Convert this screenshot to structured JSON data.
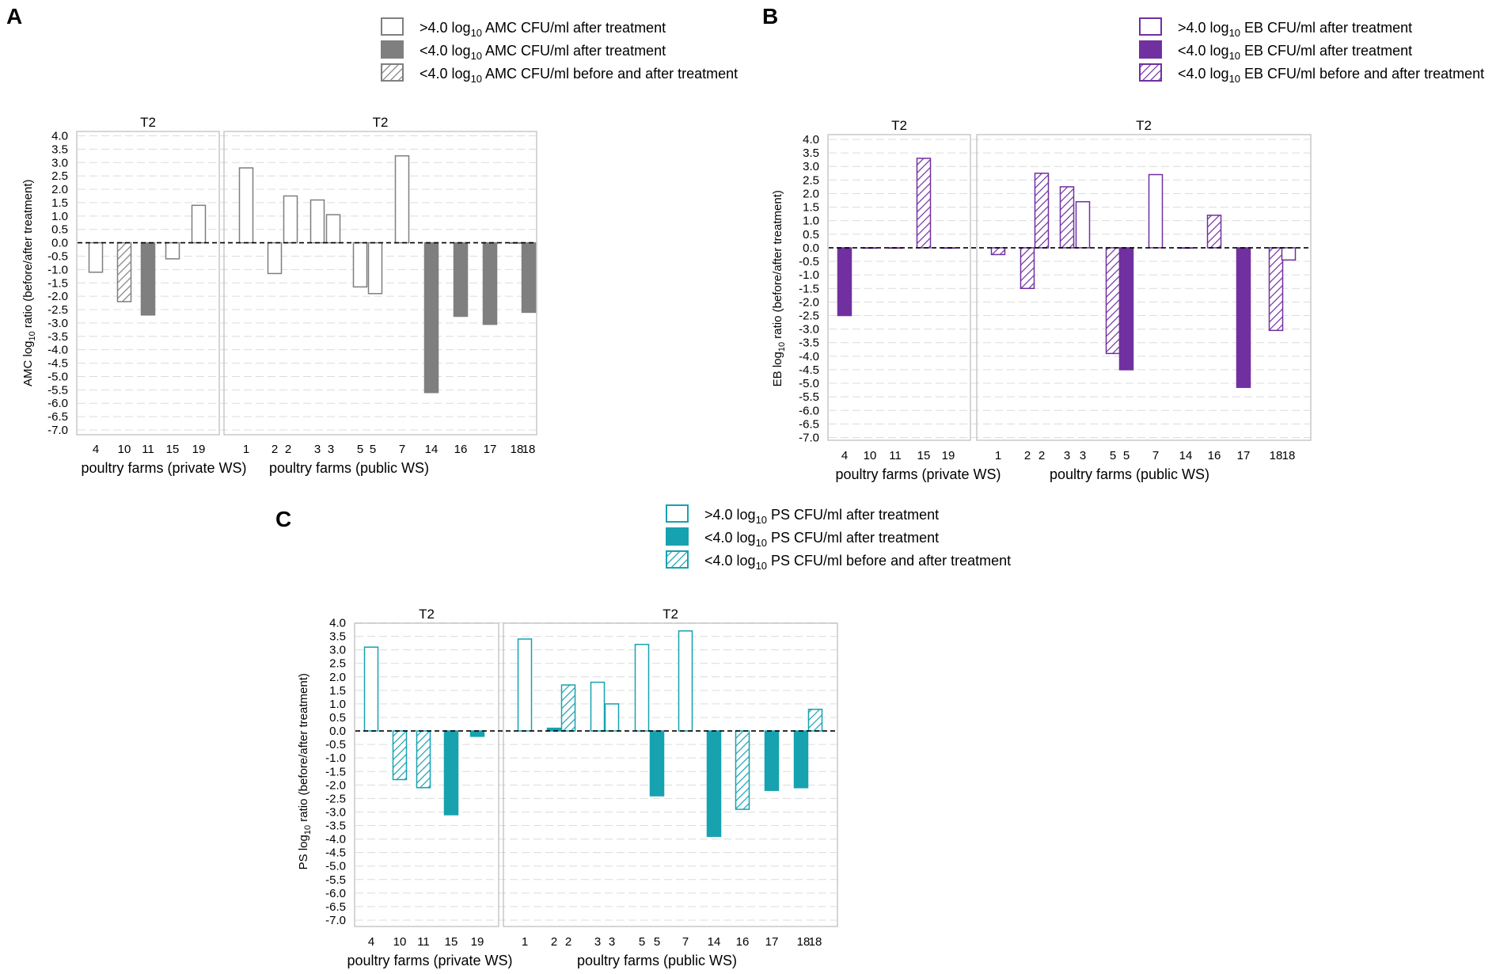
{
  "chart_data": [
    {
      "type": "bar",
      "panel_label": "A",
      "ylabel_prefix": "AMC log",
      "ylabel_sub": "10",
      "ylabel_suffix": " ratio (before/after treatment)",
      "ylim": [
        -7.0,
        4.0
      ],
      "ytick_step": 0.5,
      "ytick_labels": [
        "4.0",
        "3.5",
        "3.0",
        "2.5",
        "2.0",
        "1.5",
        "1.0",
        "0.5",
        "0.0",
        "-0.5",
        "-1.0",
        "-1.5",
        "-2.0",
        "-2.5",
        "-3.0",
        "-3.5",
        "-4.0",
        "-4.5",
        "-5.0",
        "-5.5",
        "-6.0",
        "-6.5",
        "-7.0"
      ],
      "color": "#7f7f7f",
      "legend": [
        {
          "style": "open",
          "pre": ">4.0 log",
          "sub": "10",
          "post": " AMC CFU/ml after treatment"
        },
        {
          "style": "solid",
          "pre": "<4.0 log",
          "sub": "10",
          "post": " AMC CFU/ml after treatment"
        },
        {
          "style": "hatch",
          "pre": "<4.0 log",
          "sub": "10",
          "post": " AMC CFU/ml before and after treatment"
        }
      ],
      "subpanels": [
        {
          "title": "T2",
          "xlabel": "poultry farms (private WS)",
          "categories": [
            "4",
            "10",
            "11",
            "15",
            "19"
          ],
          "bars": [
            {
              "category": "4",
              "value": -1.1,
              "style": "open"
            },
            {
              "category": "10",
              "value": -2.2,
              "style": "hatch"
            },
            {
              "category": "11",
              "value": -2.7,
              "style": "solid"
            },
            {
              "category": "15",
              "value": -0.6,
              "style": "open"
            },
            {
              "category": "19",
              "value": 1.4,
              "style": "open"
            }
          ]
        },
        {
          "title": "T2",
          "xlabel": "poultry farms (public WS)",
          "categories": [
            "1",
            "2",
            "2",
            "3",
            "3",
            "5",
            "5",
            "7",
            "14",
            "16",
            "17",
            "18",
            "18"
          ],
          "bars": [
            {
              "category": "1",
              "value": 2.8,
              "style": "open"
            },
            {
              "category": "2",
              "value": -1.15,
              "style": "open"
            },
            {
              "category": "2",
              "value": 1.75,
              "style": "open"
            },
            {
              "category": "3",
              "value": 1.6,
              "style": "open"
            },
            {
              "category": "3",
              "value": 1.05,
              "style": "open"
            },
            {
              "category": "5",
              "value": -1.65,
              "style": "open"
            },
            {
              "category": "5",
              "value": -1.9,
              "style": "open"
            },
            {
              "category": "7",
              "value": 3.25,
              "style": "open"
            },
            {
              "category": "14",
              "value": -5.6,
              "style": "solid"
            },
            {
              "category": "16",
              "value": -2.75,
              "style": "solid"
            },
            {
              "category": "17",
              "value": -3.05,
              "style": "solid"
            },
            {
              "category": "18",
              "value": 0,
              "style": "open"
            },
            {
              "category": "18",
              "value": -2.6,
              "style": "solid"
            }
          ]
        }
      ]
    },
    {
      "type": "bar",
      "panel_label": "B",
      "ylabel_prefix": "EB log",
      "ylabel_sub": "10",
      "ylabel_suffix": " ratio (before/after treatment)",
      "ylim": [
        -7.0,
        4.0
      ],
      "ytick_step": 0.5,
      "ytick_labels": [
        "4.0",
        "3.5",
        "3.0",
        "2.5",
        "2.0",
        "1.5",
        "1.0",
        "0.5",
        "0.0",
        "-0.5",
        "-1.0",
        "-1.5",
        "-2.0",
        "-2.5",
        "-3.0",
        "-3.5",
        "-4.0",
        "-4.5",
        "-5.0",
        "-5.5",
        "-6.0",
        "-6.5",
        "-7.0"
      ],
      "color": "#7030a0",
      "legend": [
        {
          "style": "open",
          "pre": ">4.0 log",
          "sub": "10",
          "post": " EB CFU/ml after treatment"
        },
        {
          "style": "solid",
          "pre": "<4.0 log",
          "sub": "10",
          "post": " EB CFU/ml after treatment"
        },
        {
          "style": "hatch",
          "pre": "<4.0 log",
          "sub": "10",
          "post": " EB CFU/ml before and after treatment"
        }
      ],
      "subpanels": [
        {
          "title": "T2",
          "xlabel": "poultry farms (private WS)",
          "categories": [
            "4",
            "10",
            "11",
            "15",
            "19"
          ],
          "bars": [
            {
              "category": "4",
              "value": -2.5,
              "style": "solid"
            },
            {
              "category": "10",
              "value": 0,
              "style": "solid"
            },
            {
              "category": "11",
              "value": 0,
              "style": "solid"
            },
            {
              "category": "15",
              "value": 3.3,
              "style": "hatch"
            },
            {
              "category": "19",
              "value": 0,
              "style": "solid"
            }
          ]
        },
        {
          "title": "T2",
          "xlabel": "poultry farms (public WS)",
          "categories": [
            "1",
            "2",
            "2",
            "3",
            "3",
            "5",
            "5",
            "7",
            "14",
            "16",
            "17",
            "18",
            "18"
          ],
          "bars": [
            {
              "category": "1",
              "value": -0.25,
              "style": "hatch"
            },
            {
              "category": "2",
              "value": -1.5,
              "style": "hatch"
            },
            {
              "category": "2",
              "value": 2.75,
              "style": "hatch"
            },
            {
              "category": "3",
              "value": 2.25,
              "style": "hatch"
            },
            {
              "category": "3",
              "value": 1.7,
              "style": "open"
            },
            {
              "category": "5",
              "value": -3.9,
              "style": "hatch"
            },
            {
              "category": "5",
              "value": -4.5,
              "style": "solid"
            },
            {
              "category": "7",
              "value": 2.7,
              "style": "open"
            },
            {
              "category": "14",
              "value": 0,
              "style": "solid"
            },
            {
              "category": "16",
              "value": 1.2,
              "style": "hatch"
            },
            {
              "category": "17",
              "value": -5.15,
              "style": "solid"
            },
            {
              "category": "18",
              "value": -3.05,
              "style": "hatch"
            },
            {
              "category": "18",
              "value": -0.45,
              "style": "open"
            }
          ]
        }
      ]
    },
    {
      "type": "bar",
      "panel_label": "C",
      "ylabel_prefix": "PS log",
      "ylabel_sub": "10",
      "ylabel_suffix": " ratio (before/after treatment)",
      "ylim": [
        -7.0,
        4.0
      ],
      "ytick_step": 0.5,
      "ytick_labels": [
        "4.0",
        "3.5",
        "3.0",
        "2.5",
        "2.0",
        "1.5",
        "1.0",
        "0.5",
        "0.0",
        "-0.5",
        "-1.0",
        "-1.5",
        "-2.0",
        "-2.5",
        "-3.0",
        "-3.5",
        "-4.0",
        "-4.5",
        "-5.0",
        "-5.5",
        "-6.0",
        "-6.5",
        "-7.0"
      ],
      "color": "#17a2b0",
      "legend": [
        {
          "style": "open",
          "pre": ">4.0 log",
          "sub": "10",
          "post": " PS CFU/ml after treatment"
        },
        {
          "style": "solid",
          "pre": "<4.0 log",
          "sub": "10",
          "post": " PS CFU/ml after treatment"
        },
        {
          "style": "hatch",
          "pre": "<4.0 log",
          "sub": "10",
          "post": " PS CFU/ml before and after treatment"
        }
      ],
      "subpanels": [
        {
          "title": "T2",
          "xlabel": "poultry farms (private WS)",
          "categories": [
            "4",
            "10",
            "11",
            "15",
            "19"
          ],
          "bars": [
            {
              "category": "4",
              "value": 3.1,
              "style": "open"
            },
            {
              "category": "10",
              "value": -1.8,
              "style": "hatch"
            },
            {
              "category": "11",
              "value": -2.1,
              "style": "hatch"
            },
            {
              "category": "15",
              "value": -3.1,
              "style": "solid"
            },
            {
              "category": "19",
              "value": -0.2,
              "style": "solid"
            }
          ]
        },
        {
          "title": "T2",
          "xlabel": "poultry farms (public WS)",
          "categories": [
            "1",
            "2",
            "2",
            "3",
            "3",
            "5",
            "5",
            "7",
            "14",
            "16",
            "17",
            "18",
            "18"
          ],
          "bars": [
            {
              "category": "1",
              "value": 3.4,
              "style": "open"
            },
            {
              "category": "2",
              "value": 0.1,
              "style": "solid"
            },
            {
              "category": "2",
              "value": 1.7,
              "style": "hatch"
            },
            {
              "category": "3",
              "value": 1.8,
              "style": "open"
            },
            {
              "category": "3",
              "value": 1.0,
              "style": "open"
            },
            {
              "category": "5",
              "value": 3.2,
              "style": "open"
            },
            {
              "category": "5",
              "value": -2.4,
              "style": "solid"
            },
            {
              "category": "7",
              "value": 3.7,
              "style": "open"
            },
            {
              "category": "14",
              "value": -3.9,
              "style": "solid"
            },
            {
              "category": "16",
              "value": -2.9,
              "style": "hatch"
            },
            {
              "category": "17",
              "value": -2.2,
              "style": "solid"
            },
            {
              "category": "18",
              "value": -2.1,
              "style": "solid"
            },
            {
              "category": "18",
              "value": 0.8,
              "style": "hatch"
            }
          ]
        }
      ]
    }
  ]
}
